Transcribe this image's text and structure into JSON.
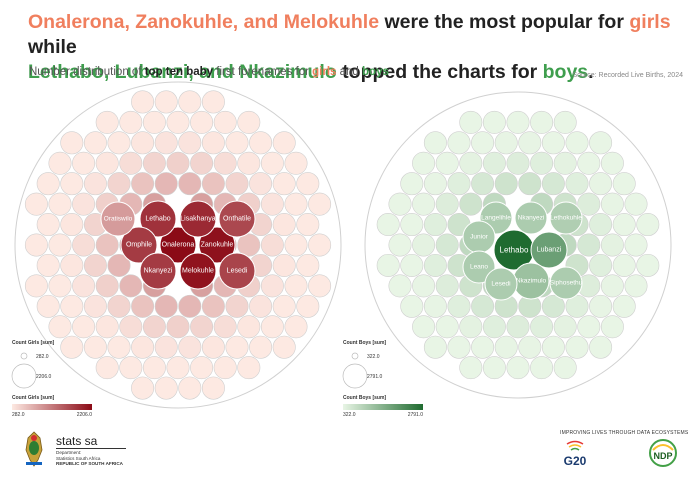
{
  "header": {
    "headline_part1": "Onalerona, Zanokuhle, and Melokuhle",
    "headline_part2": " were the most popular for ",
    "headline_part3": "girls",
    "headline_part4": " while",
    "headline_part5": "Lethabo, Lubanzi, and Nkazimulo",
    "headline_part6": " topped the charts for ",
    "headline_part7": "boys",
    "headline_part8": ".",
    "subtitle_part1": "Number distribution of ",
    "subtitle_part2": "top ten baby",
    "subtitle_part3": " first forenames for ",
    "subtitle_part4": "girls",
    "subtitle_part5": " and ",
    "subtitle_part6": "boys",
    "source": "Source: Recorded Live Births, 2024"
  },
  "colors": {
    "girls_accent": "#f07f5e",
    "boys_accent": "#3f9e4e",
    "girls_dark": "#8b0a16",
    "boys_dark": "#1f6b30"
  },
  "chart_data": [
    {
      "type": "packed-bubble",
      "name": "girls",
      "labeled_bubbles": [
        "Onalerona",
        "Zanokuhle",
        "Melokuhle",
        "Lethabo",
        "Lisakhanya",
        "Onthatile",
        "Omphile",
        "Nkanyezi",
        "Lesedi",
        "Oratiswilo"
      ],
      "size_legend_title": "Count Girls [sum]",
      "size_legend_values": [
        "282.0",
        "2206.0"
      ],
      "color_legend_title": "Count Girls [sum]",
      "color_legend_min": "282.0",
      "color_legend_max": "2206.0",
      "color_scale": [
        "#fde9e2",
        "#8b0a16"
      ]
    },
    {
      "type": "packed-bubble",
      "name": "boys",
      "labeled_bubbles": [
        "Lethabo",
        "Lubanzi",
        "Nkazimulo",
        "Langelihle",
        "Nkanyezi",
        "Lethokuhle",
        "Junior",
        "Leano",
        "Lesedi",
        "Siphosethu"
      ],
      "size_legend_title": "Count Boys [sum]",
      "size_legend_values": [
        "322.0",
        "2791.0"
      ],
      "color_legend_title": "Count Boys [sum]",
      "color_legend_min": "322.0",
      "color_legend_max": "2791.0",
      "color_scale": [
        "#e8f5e5",
        "#1f6b30"
      ]
    }
  ],
  "footer": {
    "org_name": "stats sa",
    "dept_line1": "Department:",
    "dept_line2": "Statistics South Africa",
    "dept_line3": "REPUBLIC OF SOUTH AFRICA",
    "tagline": "IMPROVING LIVES THROUGH DATA ECOSYSTEMS",
    "g20_label": "G20",
    "ndp_label": "NDP"
  }
}
